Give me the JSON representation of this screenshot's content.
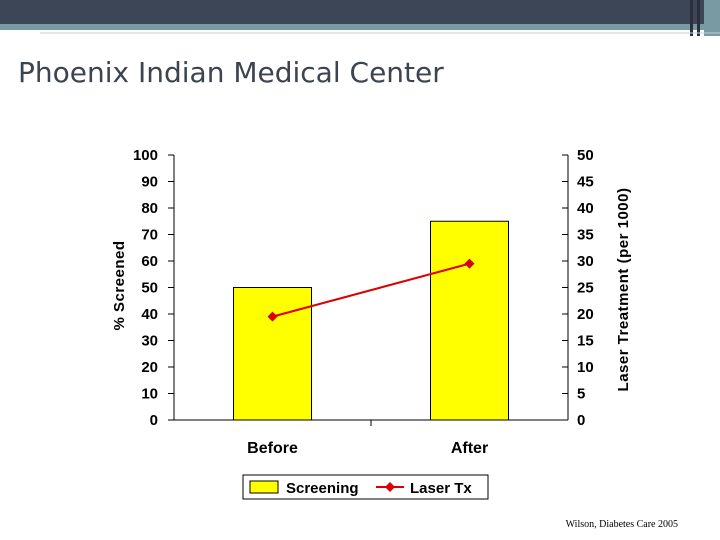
{
  "slide": {
    "title": "Phoenix Indian Medical Center",
    "citation": "Wilson, Diabetes Care 2005"
  },
  "colors": {
    "title_text": "#3c4450",
    "topbar_dark": "#3d4656",
    "topbar_accent": "#7a9aa3",
    "bar_fill": "#ffff00",
    "line_color": "#dd0000"
  },
  "chart_data": {
    "type": "bar+line",
    "categories": [
      "Before",
      "After"
    ],
    "series": [
      {
        "name": "Screening",
        "type": "bar",
        "axis": "left",
        "values": [
          50,
          75
        ]
      },
      {
        "name": "Laser Tx",
        "type": "line",
        "axis": "right",
        "values": [
          19.5,
          29.5
        ]
      }
    ],
    "ylabel": "% Screened",
    "y2label": "Laser Treatment (per 1000)",
    "ylim": [
      0,
      100
    ],
    "y2lim": [
      0,
      50
    ],
    "yticks": [
      0,
      10,
      20,
      30,
      40,
      50,
      60,
      70,
      80,
      90,
      100
    ],
    "y2ticks": [
      0,
      5,
      10,
      15,
      20,
      25,
      30,
      35,
      40,
      45,
      50
    ],
    "grid": false,
    "legend": "bottom"
  }
}
